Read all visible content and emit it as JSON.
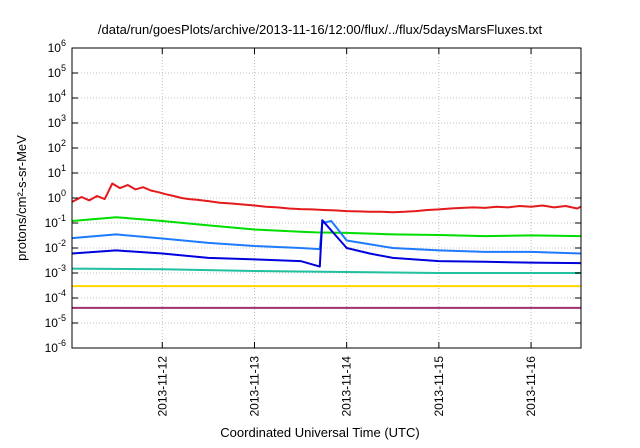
{
  "chart_data": {
    "type": "line",
    "title": "/data/run/goesPlots/archive/2013-11-16/12:00/flux/../flux/5daysMarsFluxes.txt",
    "xlabel": "Coordinated Universal Time (UTC)",
    "ylabel": "protons/cm²-s-sr-MeV",
    "y_scale": "log",
    "grid": true,
    "legend": "none",
    "xlim": [
      "2013-11-11T00:30",
      "2013-11-16T13:00"
    ],
    "ylim": [
      1e-06,
      1000000.0
    ],
    "x_ticks": [
      "2013-11-12",
      "2013-11-13",
      "2013-11-14",
      "2013-11-15",
      "2013-11-16"
    ],
    "y_ticks": [
      {
        "base": "10",
        "exp": "-6"
      },
      {
        "base": "10",
        "exp": "-5"
      },
      {
        "base": "10",
        "exp": "-4"
      },
      {
        "base": "10",
        "exp": "-3"
      },
      {
        "base": "10",
        "exp": "-2"
      },
      {
        "base": "10",
        "exp": "-1"
      },
      {
        "base": "10",
        "exp": "0"
      },
      {
        "base": "10",
        "exp": "1"
      },
      {
        "base": "10",
        "exp": "2"
      },
      {
        "base": "10",
        "exp": "3"
      },
      {
        "base": "10",
        "exp": "4"
      },
      {
        "base": "10",
        "exp": "5"
      },
      {
        "base": "10",
        "exp": "6"
      }
    ],
    "series": [
      {
        "color": "#e41a1c",
        "x": [
          "2013-11-11T00:30",
          "2013-11-11T03:00",
          "2013-11-11T05:00",
          "2013-11-11T07:00",
          "2013-11-11T09:00",
          "2013-11-11T11:00",
          "2013-11-11T13:00",
          "2013-11-11T15:00",
          "2013-11-11T17:00",
          "2013-11-11T19:00",
          "2013-11-11T21:00",
          "2013-11-11T23:00",
          "2013-11-12T01:00",
          "2013-11-12T03:00",
          "2013-11-12T05:00",
          "2013-11-12T07:00",
          "2013-11-12T09:00",
          "2013-11-12T12:00",
          "2013-11-12T15:00",
          "2013-11-12T18:00",
          "2013-11-12T21:00",
          "2013-11-13T00:00",
          "2013-11-13T03:00",
          "2013-11-13T06:00",
          "2013-11-13T09:00",
          "2013-11-13T12:00",
          "2013-11-13T15:00",
          "2013-11-13T18:00",
          "2013-11-13T21:00",
          "2013-11-14T00:00",
          "2013-11-14T03:00",
          "2013-11-14T06:00",
          "2013-11-14T09:00",
          "2013-11-14T12:00",
          "2013-11-14T15:00",
          "2013-11-14T18:00",
          "2013-11-14T21:00",
          "2013-11-15T00:00",
          "2013-11-15T03:00",
          "2013-11-15T06:00",
          "2013-11-15T09:00",
          "2013-11-15T12:00",
          "2013-11-15T15:00",
          "2013-11-15T18:00",
          "2013-11-15T21:00",
          "2013-11-16T00:00",
          "2013-11-16T03:00",
          "2013-11-16T06:00",
          "2013-11-16T09:00",
          "2013-11-16T12:00",
          "2013-11-16T13:00"
        ],
        "y": [
          0.7,
          1.1,
          0.8,
          1.2,
          0.9,
          3.8,
          2.5,
          3.3,
          2.2,
          2.7,
          2.0,
          1.7,
          1.4,
          1.2,
          1.0,
          0.9,
          0.85,
          0.75,
          0.65,
          0.6,
          0.55,
          0.5,
          0.45,
          0.42,
          0.38,
          0.36,
          0.35,
          0.33,
          0.32,
          0.3,
          0.29,
          0.28,
          0.28,
          0.27,
          0.28,
          0.3,
          0.33,
          0.35,
          0.38,
          0.4,
          0.42,
          0.4,
          0.45,
          0.42,
          0.48,
          0.45,
          0.5,
          0.42,
          0.48,
          0.38,
          0.45
        ]
      },
      {
        "color": "#00dd00",
        "x": [
          "2013-11-11T00:30",
          "2013-11-11T12:00",
          "2013-11-12T00:00",
          "2013-11-12T12:00",
          "2013-11-13T00:00",
          "2013-11-13T12:00",
          "2013-11-13T16:00",
          "2013-11-14T00:00",
          "2013-11-14T12:00",
          "2013-11-15T00:00",
          "2013-11-15T12:00",
          "2013-11-16T00:00",
          "2013-11-16T13:00"
        ],
        "y": [
          0.12,
          0.17,
          0.12,
          0.08,
          0.055,
          0.045,
          0.042,
          0.04,
          0.035,
          0.033,
          0.03,
          0.032,
          0.03
        ]
      },
      {
        "color": "#1e7bff",
        "x": [
          "2013-11-11T00:30",
          "2013-11-11T12:00",
          "2013-11-12T00:00",
          "2013-11-12T12:00",
          "2013-11-13T00:00",
          "2013-11-13T12:00",
          "2013-11-13T17:00",
          "2013-11-13T17:40",
          "2013-11-13T20:00",
          "2013-11-14T00:00",
          "2013-11-14T12:00",
          "2013-11-15T00:00",
          "2013-11-15T12:00",
          "2013-11-16T00:00",
          "2013-11-16T13:00"
        ],
        "y": [
          0.025,
          0.035,
          0.024,
          0.016,
          0.012,
          0.01,
          0.009,
          0.1,
          0.12,
          0.02,
          0.01,
          0.008,
          0.007,
          0.007,
          0.006
        ]
      },
      {
        "color": "#0000dd",
        "x": [
          "2013-11-11T00:30",
          "2013-11-11T12:00",
          "2013-11-12T00:00",
          "2013-11-12T12:00",
          "2013-11-13T00:00",
          "2013-11-13T12:00",
          "2013-11-13T17:00",
          "2013-11-13T17:40",
          "2013-11-13T20:00",
          "2013-11-14T00:00",
          "2013-11-14T06:00",
          "2013-11-14T12:00",
          "2013-11-15T00:00",
          "2013-11-15T12:00",
          "2013-11-16T00:00",
          "2013-11-16T13:00"
        ],
        "y": [
          0.006,
          0.008,
          0.006,
          0.004,
          0.0035,
          0.003,
          0.0018,
          0.13,
          0.05,
          0.01,
          0.006,
          0.004,
          0.003,
          0.0028,
          0.0026,
          0.0025
        ]
      },
      {
        "color": "#20c0a0",
        "x": [
          "2013-11-11T00:30",
          "2013-11-12T00:00",
          "2013-11-13T00:00",
          "2013-11-14T00:00",
          "2013-11-15T00:00",
          "2013-11-16T00:00",
          "2013-11-16T13:00"
        ],
        "y": [
          0.0015,
          0.0014,
          0.0012,
          0.0011,
          0.001,
          0.001,
          0.001
        ]
      },
      {
        "color": "#ffd700",
        "x": [
          "2013-11-11T00:30",
          "2013-11-12T00:00",
          "2013-11-13T00:00",
          "2013-11-14T00:00",
          "2013-11-15T00:00",
          "2013-11-16T00:00",
          "2013-11-16T13:00"
        ],
        "y": [
          0.0003,
          0.0003,
          0.0003,
          0.0003,
          0.0003,
          0.0003,
          0.0003
        ]
      },
      {
        "color": "#a03070",
        "x": [
          "2013-11-11T00:30",
          "2013-11-12T00:00",
          "2013-11-13T00:00",
          "2013-11-14T00:00",
          "2013-11-15T00:00",
          "2013-11-16T00:00",
          "2013-11-16T13:00"
        ],
        "y": [
          4e-05,
          4e-05,
          4e-05,
          4e-05,
          4e-05,
          4e-05,
          4e-05
        ]
      }
    ]
  }
}
